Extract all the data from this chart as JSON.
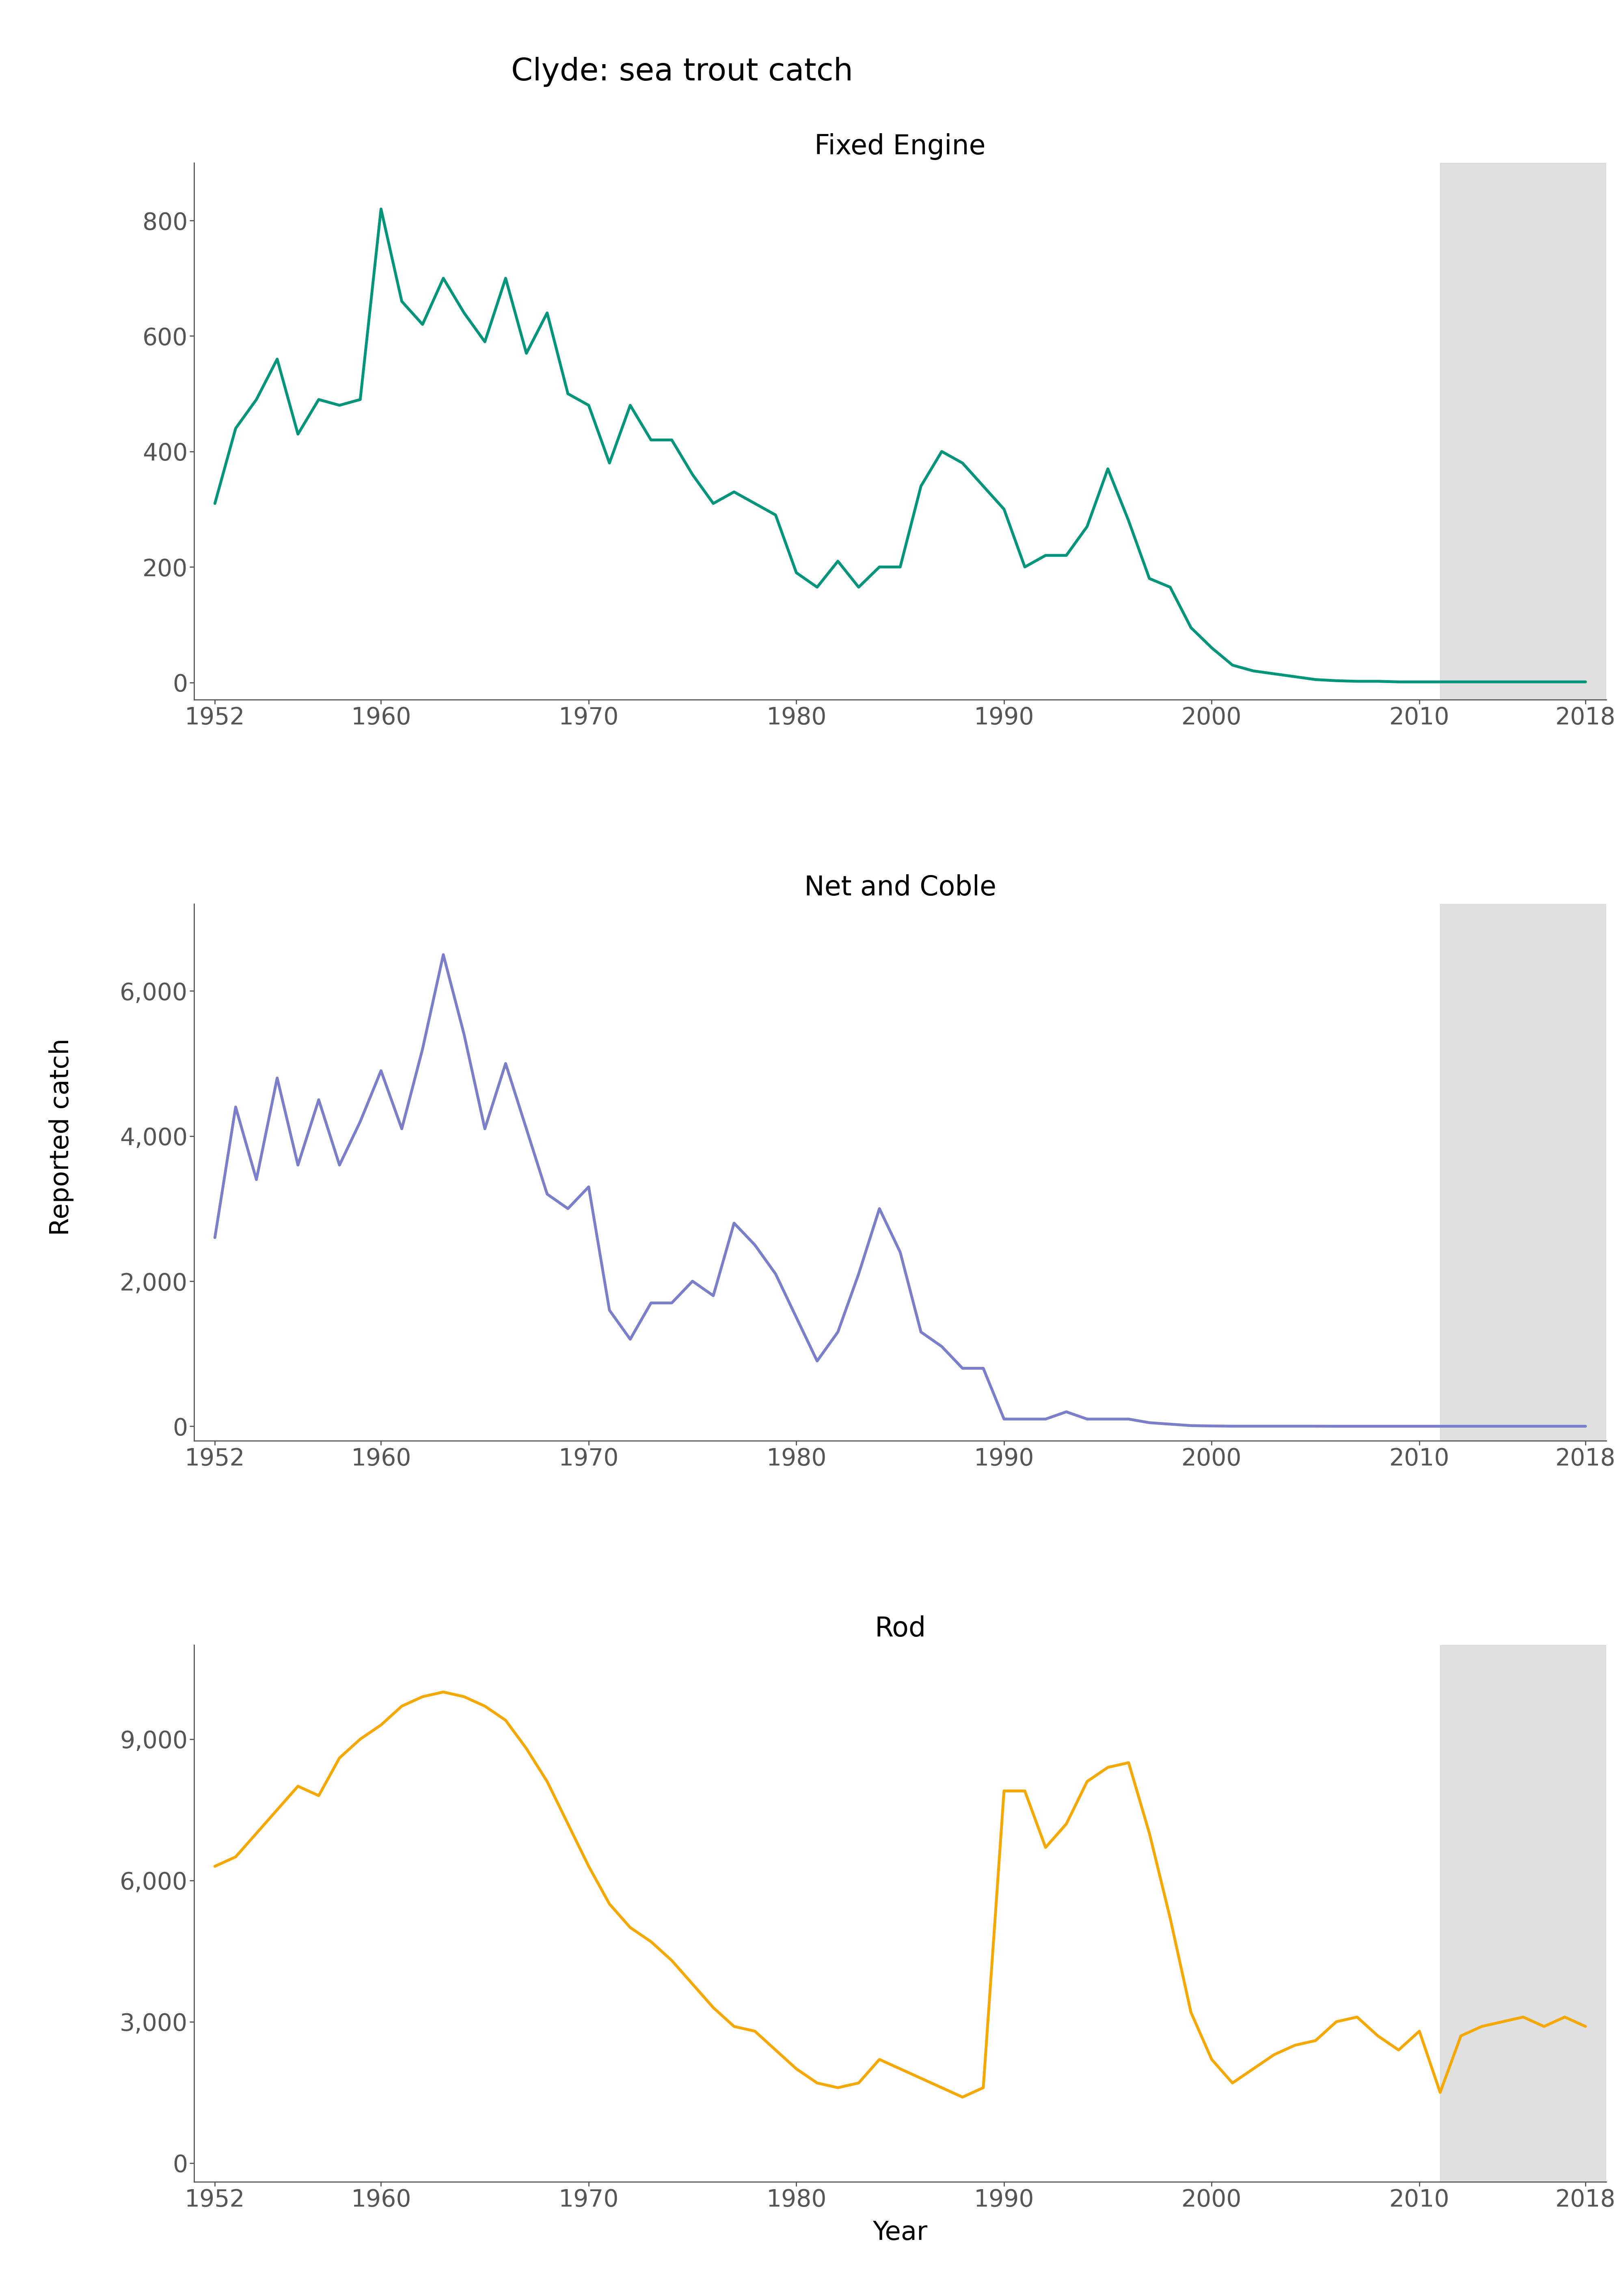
{
  "title": "Clyde: sea trout catch",
  "ylabel": "Reported catch",
  "xlabel": "Year",
  "shade_start": 2011,
  "shade_end": 2019,
  "panels": [
    {
      "title": "Fixed Engine",
      "color": "#00957A",
      "ylim": [
        -30,
        900
      ],
      "yticks": [
        0,
        200,
        400,
        600,
        800
      ],
      "years": [
        1952,
        1953,
        1954,
        1955,
        1956,
        1957,
        1958,
        1959,
        1960,
        1961,
        1962,
        1963,
        1964,
        1965,
        1966,
        1967,
        1968,
        1969,
        1970,
        1971,
        1972,
        1973,
        1974,
        1975,
        1976,
        1977,
        1978,
        1979,
        1980,
        1981,
        1982,
        1983,
        1984,
        1985,
        1986,
        1987,
        1988,
        1989,
        1990,
        1991,
        1992,
        1993,
        1994,
        1995,
        1996,
        1997,
        1998,
        1999,
        2000,
        2001,
        2002,
        2003,
        2004,
        2005,
        2006,
        2007,
        2008,
        2009,
        2010,
        2011,
        2012,
        2013,
        2014,
        2015,
        2016,
        2017,
        2018
      ],
      "values": [
        310,
        440,
        490,
        560,
        430,
        490,
        480,
        490,
        820,
        660,
        620,
        700,
        640,
        590,
        700,
        570,
        640,
        500,
        480,
        380,
        480,
        420,
        420,
        360,
        310,
        330,
        310,
        290,
        190,
        165,
        210,
        165,
        200,
        200,
        340,
        400,
        380,
        340,
        300,
        200,
        220,
        220,
        270,
        370,
        280,
        180,
        165,
        95,
        60,
        30,
        20,
        15,
        10,
        5,
        3,
        2,
        2,
        1,
        1,
        1,
        1,
        1,
        1,
        1,
        1,
        1,
        1
      ]
    },
    {
      "title": "Net and Coble",
      "color": "#7B7EC8",
      "ylim": [
        -200,
        7200
      ],
      "yticks": [
        0,
        2000,
        4000,
        6000
      ],
      "years": [
        1952,
        1953,
        1954,
        1955,
        1956,
        1957,
        1958,
        1959,
        1960,
        1961,
        1962,
        1963,
        1964,
        1965,
        1966,
        1967,
        1968,
        1969,
        1970,
        1971,
        1972,
        1973,
        1974,
        1975,
        1976,
        1977,
        1978,
        1979,
        1980,
        1981,
        1982,
        1983,
        1984,
        1985,
        1986,
        1987,
        1988,
        1989,
        1990,
        1991,
        1992,
        1993,
        1994,
        1995,
        1996,
        1997,
        1998,
        1999,
        2000,
        2001,
        2002,
        2003,
        2004,
        2005,
        2006,
        2007,
        2008,
        2009,
        2010,
        2011,
        2012,
        2013,
        2014,
        2015,
        2016,
        2017,
        2018
      ],
      "values": [
        2600,
        4400,
        3400,
        4800,
        3600,
        4500,
        3600,
        4200,
        4900,
        4100,
        5200,
        6500,
        5400,
        4100,
        5000,
        4100,
        3200,
        3000,
        3300,
        1600,
        1200,
        1700,
        1700,
        2000,
        1800,
        2800,
        2500,
        2100,
        1500,
        900,
        1300,
        2100,
        3000,
        2400,
        1300,
        1100,
        800,
        800,
        100,
        100,
        100,
        200,
        100,
        100,
        100,
        50,
        30,
        10,
        5,
        2,
        2,
        2,
        2,
        2,
        1,
        1,
        1,
        1,
        1,
        1,
        1,
        1,
        1,
        1,
        1,
        1,
        1
      ]
    },
    {
      "title": "Rod",
      "color": "#F5A800",
      "ylim": [
        -400,
        11000
      ],
      "yticks": [
        0,
        3000,
        6000,
        9000
      ],
      "years": [
        1952,
        1953,
        1954,
        1955,
        1956,
        1957,
        1958,
        1959,
        1960,
        1961,
        1962,
        1963,
        1964,
        1965,
        1966,
        1967,
        1968,
        1969,
        1970,
        1971,
        1972,
        1973,
        1974,
        1975,
        1976,
        1977,
        1978,
        1979,
        1980,
        1981,
        1982,
        1983,
        1984,
        1985,
        1986,
        1987,
        1988,
        1989,
        1990,
        1991,
        1992,
        1993,
        1994,
        1995,
        1996,
        1997,
        1998,
        1999,
        2000,
        2001,
        2002,
        2003,
        2004,
        2005,
        2006,
        2007,
        2008,
        2009,
        2010,
        2011,
        2012,
        2013,
        2014,
        2015,
        2016,
        2017,
        2018
      ],
      "values": [
        6300,
        6500,
        7000,
        7500,
        8000,
        7800,
        8600,
        9000,
        9300,
        9700,
        9900,
        10000,
        9900,
        9700,
        9400,
        8800,
        8100,
        7200,
        6300,
        5500,
        5000,
        4700,
        4300,
        3800,
        3300,
        2900,
        2800,
        2400,
        2000,
        1700,
        1600,
        1700,
        2200,
        2000,
        1800,
        1600,
        1400,
        1600,
        7900,
        7900,
        6700,
        7200,
        8100,
        8400,
        8500,
        7000,
        5200,
        3200,
        2200,
        1700,
        2000,
        2300,
        2500,
        2600,
        3000,
        3100,
        2700,
        2400,
        2800,
        1500,
        2700,
        2900,
        3000,
        3100,
        2900,
        3100,
        2900
      ]
    }
  ],
  "xlim": [
    1951,
    2019
  ],
  "xticks": [
    1952,
    1960,
    1970,
    1980,
    1990,
    2000,
    2010,
    2018
  ],
  "shade_color": "#CCCCCC",
  "shade_alpha": 0.6,
  "line_width": 5.0,
  "title_fontsize": 55,
  "panel_title_fontsize": 48,
  "axis_label_fontsize": 46,
  "tick_fontsize": 42,
  "background_color": "#FFFFFF",
  "spine_color": "#555555"
}
